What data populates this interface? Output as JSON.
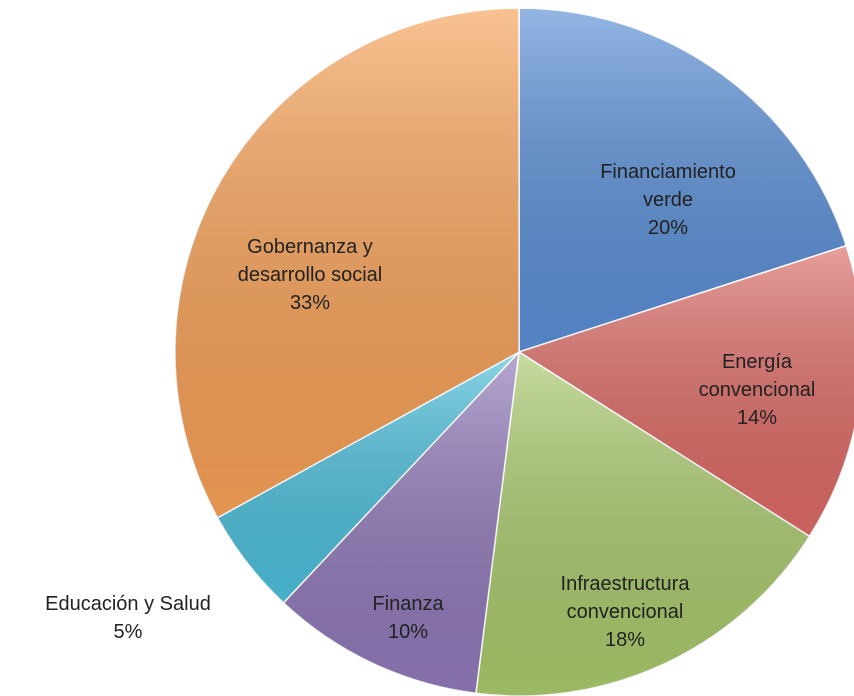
{
  "chart_data": {
    "type": "pie",
    "categories": [
      "Financiamiento verde",
      "Energía convencional",
      "Infraestructura convencional",
      "Finanza",
      "Educación y Salud",
      "Gobernanza y desarrollo social"
    ],
    "values": [
      20,
      14,
      18,
      10,
      5,
      33
    ],
    "value_labels": [
      "20%",
      "14%",
      "18%",
      "10%",
      "5%",
      "33%"
    ],
    "colors": [
      "#5a8fd6",
      "#dc6b66",
      "#a9c96c",
      "#9079b9",
      "#4cbfdb",
      "#f7a157"
    ]
  }
}
